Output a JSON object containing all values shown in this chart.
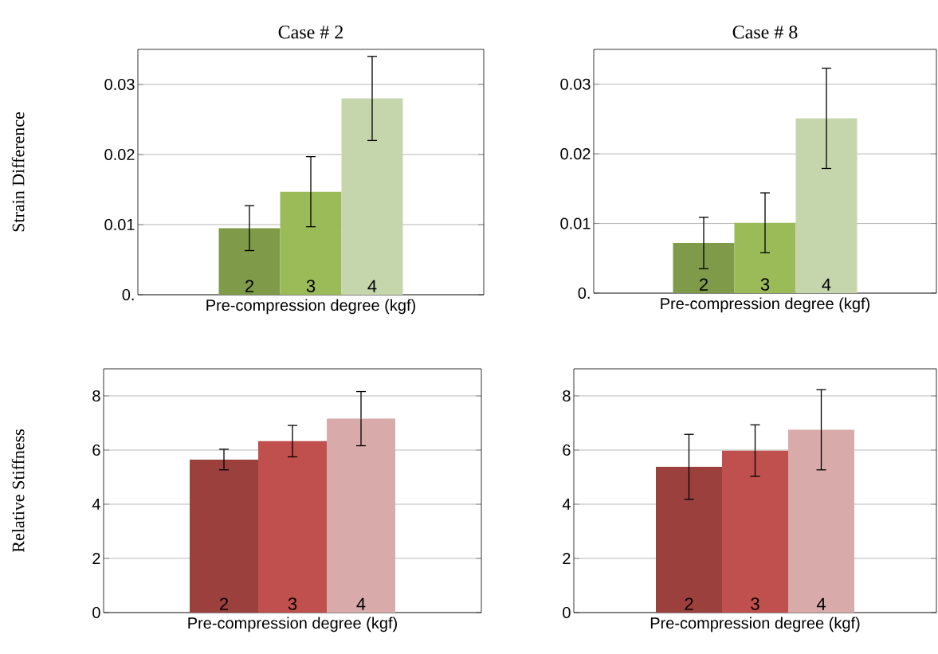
{
  "chart_data": [
    {
      "type": "bar",
      "title": "Case # 2",
      "ylabel": "Strain Difference",
      "xlabel": "Pre-compression degree (kgf)",
      "categories": [
        "2",
        "3",
        "4"
      ],
      "values": [
        0.0095,
        0.0147,
        0.028
      ],
      "errors": [
        0.0032,
        0.005,
        0.006
      ],
      "colors": [
        "#7f9a48",
        "#9bbb59",
        "#c6d6ac"
      ],
      "ylim": [
        0,
        0.035
      ],
      "yticks": [
        {
          "value": 0,
          "label": "0."
        },
        0.01,
        0.02,
        0.03
      ],
      "grid": "y"
    },
    {
      "type": "bar",
      "title": "Case # 8",
      "xlabel": "Pre-compression degree (kgf)",
      "categories": [
        "2",
        "3",
        "4"
      ],
      "values": [
        0.0072,
        0.0101,
        0.0251
      ],
      "errors": [
        0.0037,
        0.0043,
        0.0072
      ],
      "colors": [
        "#7f9a48",
        "#9bbb59",
        "#c6d6ac"
      ],
      "ylim": [
        0,
        0.035
      ],
      "yticks": [
        {
          "value": 0,
          "label": "0."
        },
        0.01,
        0.02,
        0.03
      ],
      "grid": "y"
    },
    {
      "type": "bar",
      "ylabel": "Relative Stiffness",
      "xlabel": "Pre-compression degree (kgf)",
      "categories": [
        "2",
        "3",
        "4"
      ],
      "values": [
        5.65,
        6.33,
        7.16
      ],
      "errors": [
        0.38,
        0.58,
        1.0
      ],
      "colors": [
        "#9c403d",
        "#c0504d",
        "#d9aaaa"
      ],
      "ylim": [
        0,
        9
      ],
      "yticks": [
        0,
        2,
        4,
        6,
        8
      ],
      "grid": "y"
    },
    {
      "type": "bar",
      "xlabel": "Pre-compression degree (kgf)",
      "categories": [
        "2",
        "3",
        "4"
      ],
      "values": [
        5.38,
        5.98,
        6.75
      ],
      "errors": [
        1.2,
        0.95,
        1.48
      ],
      "colors": [
        "#9c403d",
        "#c0504d",
        "#d9aaaa"
      ],
      "ylim": [
        0,
        9
      ],
      "yticks": [
        0,
        2,
        4,
        6,
        8
      ],
      "grid": "y"
    }
  ]
}
